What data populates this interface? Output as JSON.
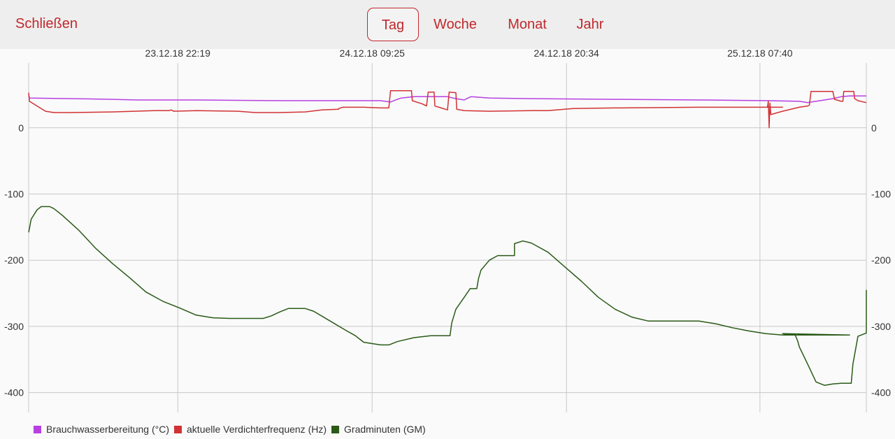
{
  "header": {
    "close_label": "Schließen",
    "tabs": [
      {
        "label": "Tag",
        "active": true
      },
      {
        "label": "Woche",
        "active": false
      },
      {
        "label": "Monat",
        "active": false
      },
      {
        "label": "Jahr",
        "active": false
      }
    ]
  },
  "colors": {
    "accent": "#c0282c",
    "topbar_bg": "#eeeeee"
  },
  "chart_data": {
    "type": "line",
    "x_ticks": [
      {
        "x": 0.178,
        "label": "23.12.18 22:19"
      },
      {
        "x": 0.41,
        "label": "24.12.18 09:25"
      },
      {
        "x": 0.642,
        "label": "24.12.18 20:34"
      },
      {
        "x": 0.873,
        "label": "25.12.18 07:40"
      }
    ],
    "xlim": [
      0,
      1
    ],
    "ylim": [
      -430,
      98
    ],
    "y_ticks": [
      0,
      -100,
      -200,
      -300,
      -400
    ],
    "grid": true,
    "legend_position": "bottom-left",
    "series": [
      {
        "name": "Brauchwasserbereitung (°C)",
        "color": "#b840e0",
        "points": [
          [
            0,
            49
          ],
          [
            0.001,
            45
          ],
          [
            0.05,
            44
          ],
          [
            0.1,
            43
          ],
          [
            0.13,
            42
          ],
          [
            0.2,
            42
          ],
          [
            0.3,
            41
          ],
          [
            0.35,
            41
          ],
          [
            0.42,
            41
          ],
          [
            0.432,
            39
          ],
          [
            0.44,
            43
          ],
          [
            0.445,
            45
          ],
          [
            0.46,
            47
          ],
          [
            0.5,
            47
          ],
          [
            0.51,
            44
          ],
          [
            0.52,
            42
          ],
          [
            0.523,
            44
          ],
          [
            0.528,
            47
          ],
          [
            0.55,
            45
          ],
          [
            0.6,
            44
          ],
          [
            0.7,
            43
          ],
          [
            0.8,
            42
          ],
          [
            0.88,
            41
          ],
          [
            0.92,
            40
          ],
          [
            0.93,
            38
          ],
          [
            0.94,
            40
          ],
          [
            0.95,
            42
          ],
          [
            0.96,
            44
          ],
          [
            0.97,
            47
          ],
          [
            0.98,
            48
          ],
          [
            1,
            48
          ]
        ]
      },
      {
        "name": "aktuelle Verdichterfrequenz (Hz)",
        "color": "#d23234",
        "points": [
          [
            0,
            53
          ],
          [
            0.001,
            40
          ],
          [
            0.01,
            33
          ],
          [
            0.02,
            25
          ],
          [
            0.03,
            23
          ],
          [
            0.05,
            23
          ],
          [
            0.1,
            24
          ],
          [
            0.15,
            26
          ],
          [
            0.168,
            26
          ],
          [
            0.17,
            27
          ],
          [
            0.173,
            25
          ],
          [
            0.2,
            26
          ],
          [
            0.25,
            25
          ],
          [
            0.27,
            23
          ],
          [
            0.3,
            23
          ],
          [
            0.33,
            24
          ],
          [
            0.35,
            27
          ],
          [
            0.37,
            28
          ],
          [
            0.37,
            29
          ],
          [
            0.375,
            31
          ],
          [
            0.4,
            31
          ],
          [
            0.42,
            30
          ],
          [
            0.43,
            30
          ],
          [
            0.432,
            56
          ],
          [
            0.457,
            56
          ],
          [
            0.458,
            41
          ],
          [
            0.47,
            36
          ],
          [
            0.475,
            33
          ],
          [
            0.477,
            54
          ],
          [
            0.484,
            54
          ],
          [
            0.485,
            33
          ],
          [
            0.5,
            27
          ],
          [
            0.502,
            54
          ],
          [
            0.51,
            53
          ],
          [
            0.511,
            28
          ],
          [
            0.52,
            26
          ],
          [
            0.55,
            25
          ],
          [
            0.6,
            26
          ],
          [
            0.62,
            26
          ],
          [
            0.63,
            27
          ],
          [
            0.65,
            29
          ],
          [
            0.7,
            30
          ],
          [
            0.8,
            31
          ],
          [
            0.9,
            31
          ],
          [
            0.882,
            31
          ],
          [
            0.883,
            40
          ],
          [
            0.884,
            0
          ],
          [
            0.885,
            37
          ],
          [
            0.886,
            20
          ],
          [
            0.9,
            25
          ],
          [
            0.92,
            31
          ],
          [
            0.93,
            33
          ],
          [
            0.932,
            34
          ],
          [
            0.934,
            55
          ],
          [
            0.96,
            55
          ],
          [
            0.962,
            43
          ],
          [
            0.97,
            40
          ],
          [
            0.972,
            40
          ],
          [
            0.973,
            55
          ],
          [
            0.985,
            55
          ],
          [
            0.986,
            44
          ],
          [
            0.99,
            41
          ],
          [
            1,
            38
          ]
        ]
      },
      {
        "name": "Gradminuten (GM)",
        "color": "#2a5a18",
        "points": [
          [
            0,
            -158
          ],
          [
            0.003,
            -138
          ],
          [
            0.01,
            -124
          ],
          [
            0.015,
            -119
          ],
          [
            0.025,
            -119
          ],
          [
            0.03,
            -122
          ],
          [
            0.04,
            -132
          ],
          [
            0.06,
            -155
          ],
          [
            0.08,
            -182
          ],
          [
            0.1,
            -205
          ],
          [
            0.12,
            -226
          ],
          [
            0.14,
            -248
          ],
          [
            0.16,
            -262
          ],
          [
            0.18,
            -272
          ],
          [
            0.2,
            -283
          ],
          [
            0.22,
            -287
          ],
          [
            0.24,
            -288
          ],
          [
            0.26,
            -288
          ],
          [
            0.28,
            -288
          ],
          [
            0.29,
            -284
          ],
          [
            0.3,
            -278
          ],
          [
            0.31,
            -273
          ],
          [
            0.33,
            -273
          ],
          [
            0.34,
            -277
          ],
          [
            0.36,
            -292
          ],
          [
            0.38,
            -307
          ],
          [
            0.39,
            -314
          ],
          [
            0.4,
            -324
          ],
          [
            0.42,
            -328
          ],
          [
            0.43,
            -328
          ],
          [
            0.44,
            -323
          ],
          [
            0.46,
            -317
          ],
          [
            0.48,
            -314
          ],
          [
            0.49,
            -314
          ],
          [
            0.5,
            -314
          ],
          [
            0.503,
            -314
          ],
          [
            0.505,
            -295
          ],
          [
            0.51,
            -274
          ],
          [
            0.52,
            -256
          ],
          [
            0.527,
            -243
          ],
          [
            0.535,
            -243
          ],
          [
            0.537,
            -228
          ],
          [
            0.54,
            -215
          ],
          [
            0.55,
            -200
          ],
          [
            0.56,
            -193
          ],
          [
            0.57,
            -193
          ],
          [
            0.58,
            -193
          ],
          [
            0.58,
            -175
          ],
          [
            0.59,
            -171
          ],
          [
            0.6,
            -174
          ],
          [
            0.62,
            -188
          ],
          [
            0.64,
            -210
          ],
          [
            0.66,
            -232
          ],
          [
            0.68,
            -256
          ],
          [
            0.7,
            -274
          ],
          [
            0.72,
            -286
          ],
          [
            0.74,
            -292
          ],
          [
            0.76,
            -292
          ],
          [
            0.78,
            -292
          ],
          [
            0.8,
            -292
          ],
          [
            0.82,
            -296
          ],
          [
            0.84,
            -302
          ],
          [
            0.86,
            -307
          ],
          [
            0.88,
            -311
          ],
          [
            0.9,
            -313
          ],
          [
            0.92,
            -313
          ],
          [
            0.94,
            -313
          ],
          [
            0.96,
            -313
          ],
          [
            0.98,
            -313
          ],
          [
            0.9,
            -311
          ],
          [
            0.905,
            -312
          ],
          [
            0.91,
            -312
          ],
          [
            0.915,
            -313
          ],
          [
            0.918,
            -322
          ],
          [
            0.92,
            -331
          ],
          [
            0.93,
            -357
          ],
          [
            0.94,
            -384
          ],
          [
            0.95,
            -389
          ],
          [
            0.96,
            -387
          ],
          [
            0.97,
            -386
          ],
          [
            0.98,
            -386
          ],
          [
            0.982,
            -386
          ],
          [
            0.984,
            -357
          ],
          [
            0.99,
            -315
          ],
          [
            1.0,
            -310
          ],
          [
            1.0,
            -286
          ],
          [
            1.0,
            -262
          ],
          [
            1.0,
            -245
          ]
        ]
      }
    ]
  }
}
